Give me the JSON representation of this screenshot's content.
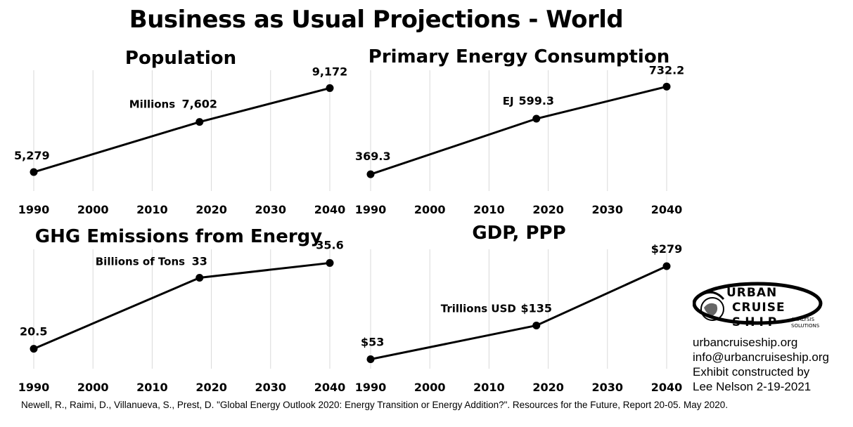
{
  "title": "Business as Usual Projections - World",
  "chart_data": [
    {
      "type": "line",
      "title": "Population",
      "unit_label": "Millions",
      "x": [
        1990,
        2018,
        2040
      ],
      "values": [
        5279,
        7602,
        9172
      ],
      "data_labels": [
        "5,279",
        "7,602",
        "9,172"
      ],
      "x_ticks": [
        "1990",
        "2000",
        "2010",
        "2020",
        "2030",
        "2040"
      ],
      "xlim": [
        1990,
        2040
      ],
      "ylim": [
        4400,
        10000
      ],
      "grid": "vertical"
    },
    {
      "type": "line",
      "title": "Primary Energy Consumption",
      "unit_label": "EJ",
      "x": [
        1990,
        2018,
        2040
      ],
      "values": [
        369.3,
        599.3,
        732.2
      ],
      "data_labels": [
        "369.3",
        "599.3",
        "732.2"
      ],
      "x_ticks": [
        "1990",
        "2000",
        "2010",
        "2020",
        "2030",
        "2040"
      ],
      "xlim": [
        1990,
        2040
      ],
      "ylim": [
        300,
        800
      ],
      "grid": "vertical"
    },
    {
      "type": "line",
      "title": "GHG Emissions from Energy",
      "unit_label": "Billions of Tons",
      "x": [
        1990,
        2018,
        2040
      ],
      "values": [
        20.5,
        33,
        35.6
      ],
      "data_labels": [
        "20.5",
        "33",
        "35.6"
      ],
      "x_ticks": [
        "1990",
        "2000",
        "2010",
        "2020",
        "2030",
        "2040"
      ],
      "xlim": [
        1990,
        2040
      ],
      "ylim": [
        17,
        38
      ],
      "grid": "vertical"
    },
    {
      "type": "line",
      "title": "GDP, PPP",
      "unit_label": "Trillions USD",
      "x": [
        1990,
        2018,
        2040
      ],
      "values": [
        53,
        135,
        279
      ],
      "data_labels": [
        "$53",
        "$135",
        "$279"
      ],
      "x_ticks": [
        "1990",
        "2000",
        "2010",
        "2020",
        "2030",
        "2040"
      ],
      "xlim": [
        1990,
        2040
      ],
      "ylim": [
        30,
        320
      ],
      "grid": "vertical"
    }
  ],
  "logo": {
    "line1": "URBAN",
    "line2": "CRUISE",
    "line3": "SHIP",
    "sub1": "ANALYSIS",
    "sub2": "SOLUTIONS"
  },
  "credits": {
    "website": "urbancruiseship.org",
    "email": "info@urbancruiseship.org",
    "line1": "Exhibit constructed by",
    "line2": "Lee Nelson 2-19-2021"
  },
  "source": "Newell, R., Raimi, D., Villanueva, S., Prest, D. \"Global Energy Outlook 2020: Energy Transition or Energy Addition?\". Resources for the Future, Report 20-05. May 2020."
}
